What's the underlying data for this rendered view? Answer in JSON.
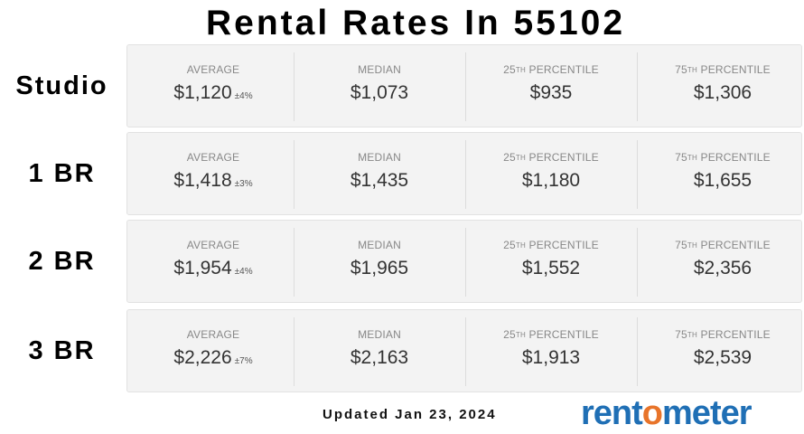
{
  "title": "Rental Rates In 55102",
  "stat_labels": {
    "average": "AVERAGE",
    "median": "MEDIAN",
    "p25_num": "25",
    "p25_sup": "TH",
    "p25_text": " PERCENTILE",
    "p75_num": "75",
    "p75_sup": "TH",
    "p75_text": " PERCENTILE"
  },
  "rows": [
    {
      "label": "Studio",
      "average": "$1,120",
      "average_pm": "±4%",
      "median": "$1,073",
      "p25": "$935",
      "p75": "$1,306"
    },
    {
      "label": "1 BR",
      "average": "$1,418",
      "average_pm": "±3%",
      "median": "$1,435",
      "p25": "$1,180",
      "p75": "$1,655"
    },
    {
      "label": "2 BR",
      "average": "$1,954",
      "average_pm": "±4%",
      "median": "$1,965",
      "p25": "$1,552",
      "p75": "$2,356"
    },
    {
      "label": "3 BR",
      "average": "$2,226",
      "average_pm": "±7%",
      "median": "$2,163",
      "p25": "$1,913",
      "p75": "$2,539"
    }
  ],
  "footer": {
    "updated": "Updated Jan 23, 2024",
    "logo_prefix": "rent",
    "logo_o": "o",
    "logo_suffix": "meter"
  },
  "colors": {
    "logo_blue": "#1f6fb5",
    "logo_orange": "#e8742a",
    "card_bg": "#f3f3f3"
  },
  "chart_data": {
    "type": "table",
    "title": "Rental Rates In 55102",
    "columns": [
      "AVERAGE",
      "MEDIAN",
      "25TH PERCENTILE",
      "75TH PERCENTILE"
    ],
    "rows": [
      {
        "category": "Studio",
        "average": 1120,
        "average_margin_pct": 4,
        "median": 1073,
        "percentile_25": 935,
        "percentile_75": 1306
      },
      {
        "category": "1 BR",
        "average": 1418,
        "average_margin_pct": 3,
        "median": 1435,
        "percentile_25": 1180,
        "percentile_75": 1655
      },
      {
        "category": "2 BR",
        "average": 1954,
        "average_margin_pct": 4,
        "median": 1965,
        "percentile_25": 1552,
        "percentile_75": 2356
      },
      {
        "category": "3 BR",
        "average": 2226,
        "average_margin_pct": 7,
        "median": 2163,
        "percentile_25": 1913,
        "percentile_75": 2539
      }
    ]
  }
}
